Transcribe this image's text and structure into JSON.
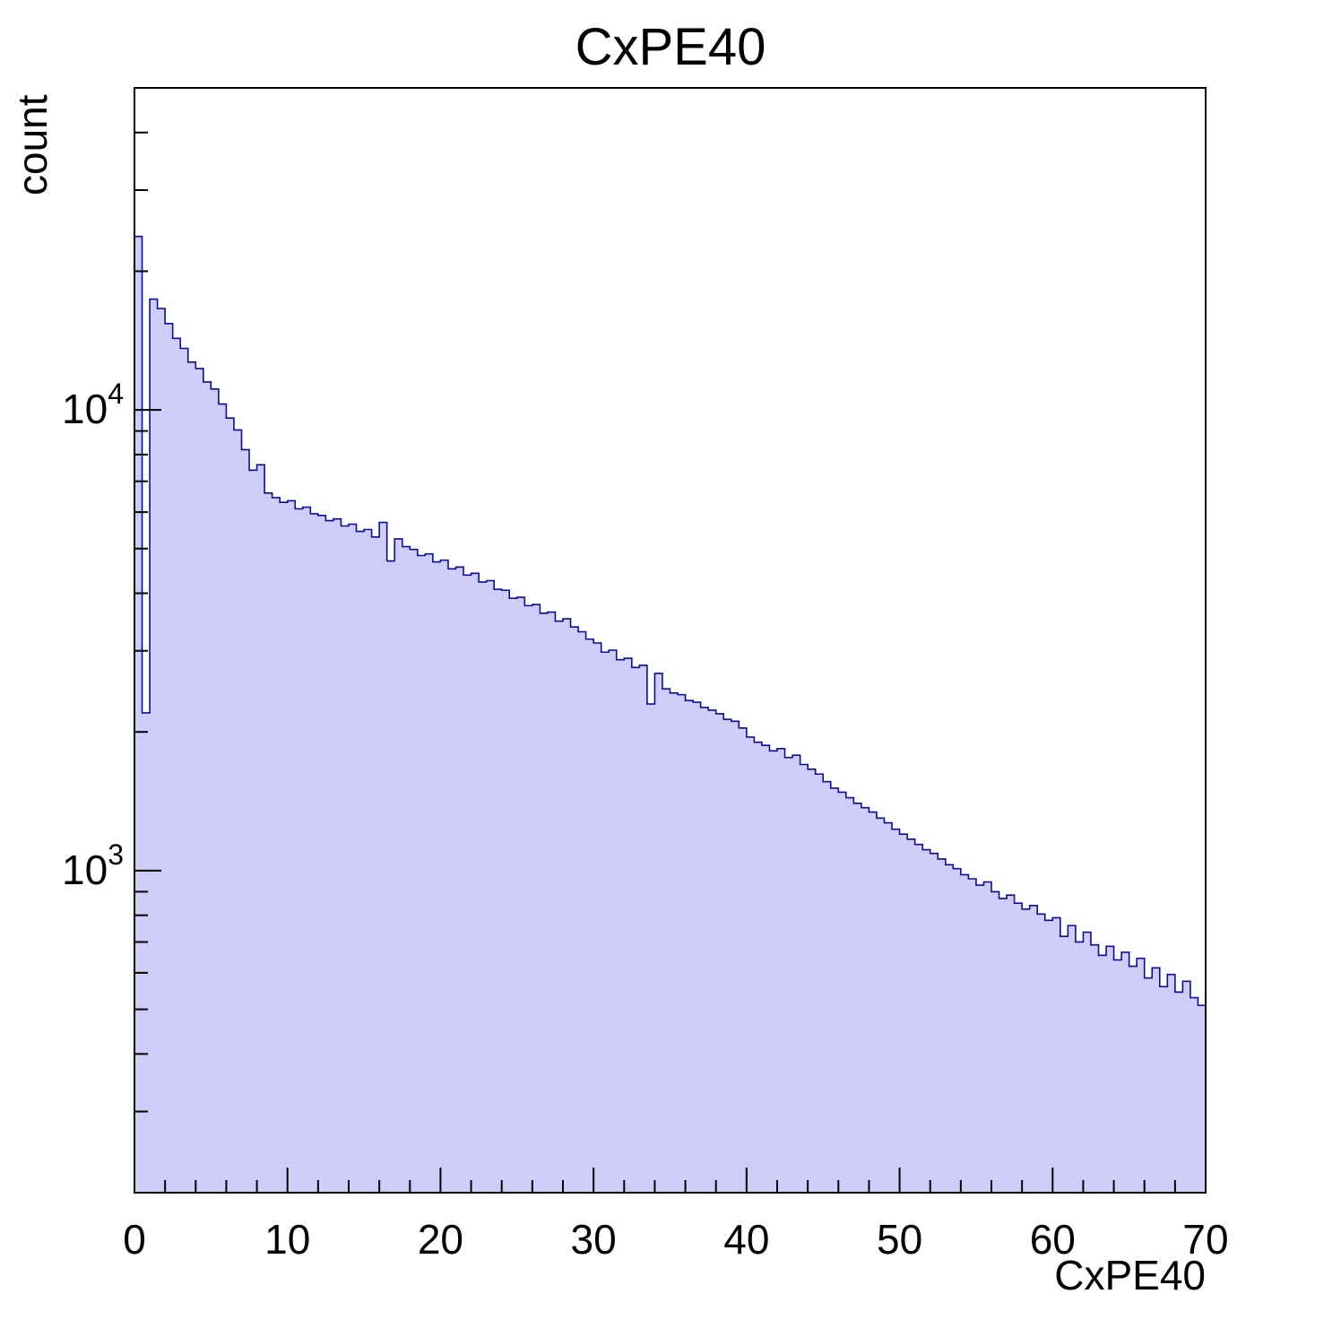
{
  "page": {
    "background": "#ffffff"
  },
  "chart_data": {
    "type": "histogram",
    "title": "CxPE40",
    "xlabel": "CxPE40",
    "ylabel": "count",
    "x_min": 0,
    "x_max": 70,
    "y_scale": "log",
    "y_min": 200,
    "y_max": 50000,
    "grid": false,
    "legend_position": "none",
    "bin_start": 0,
    "bin_width": 0.5,
    "counts": [
      23800,
      2200,
      17400,
      16600,
      15400,
      14300,
      13600,
      12700,
      12300,
      11500,
      11100,
      10300,
      9600,
      9050,
      8200,
      7400,
      7600,
      6600,
      6450,
      6300,
      6350,
      6100,
      6150,
      5950,
      5900,
      5750,
      5800,
      5600,
      5650,
      5450,
      5500,
      5300,
      5700,
      4700,
      5250,
      5050,
      4980,
      4830,
      4870,
      4680,
      4720,
      4520,
      4560,
      4380,
      4420,
      4230,
      4260,
      4080,
      4060,
      3900,
      3920,
      3760,
      3780,
      3620,
      3640,
      3480,
      3520,
      3380,
      3300,
      3180,
      3120,
      2980,
      3010,
      2870,
      2890,
      2760,
      2790,
      2300,
      2680,
      2480,
      2430,
      2410,
      2340,
      2320,
      2260,
      2230,
      2190,
      2130,
      2110,
      2040,
      1950,
      1900,
      1870,
      1820,
      1840,
      1760,
      1780,
      1700,
      1660,
      1620,
      1560,
      1510,
      1480,
      1440,
      1400,
      1370,
      1340,
      1300,
      1270,
      1230,
      1200,
      1170,
      1140,
      1110,
      1090,
      1060,
      1030,
      1010,
      980,
      960,
      930,
      945,
      900,
      870,
      885,
      850,
      825,
      840,
      805,
      780,
      790,
      720,
      760,
      700,
      735,
      690,
      655,
      685,
      640,
      665,
      620,
      645,
      585,
      615,
      560,
      595,
      545,
      575,
      530,
      510
    ],
    "x_tick_major": [
      0,
      10,
      20,
      30,
      40,
      50,
      60,
      70
    ],
    "x_tick_minor_step": 2,
    "y_tick_labels": [
      {
        "value": 1000,
        "base": "10",
        "exp": "3"
      },
      {
        "value": 10000,
        "base": "10",
        "exp": "4"
      }
    ],
    "colors": {
      "fill": "#cdcdf7",
      "line": "#0b0b9c",
      "axis": "#000000",
      "text": "#000000"
    }
  }
}
